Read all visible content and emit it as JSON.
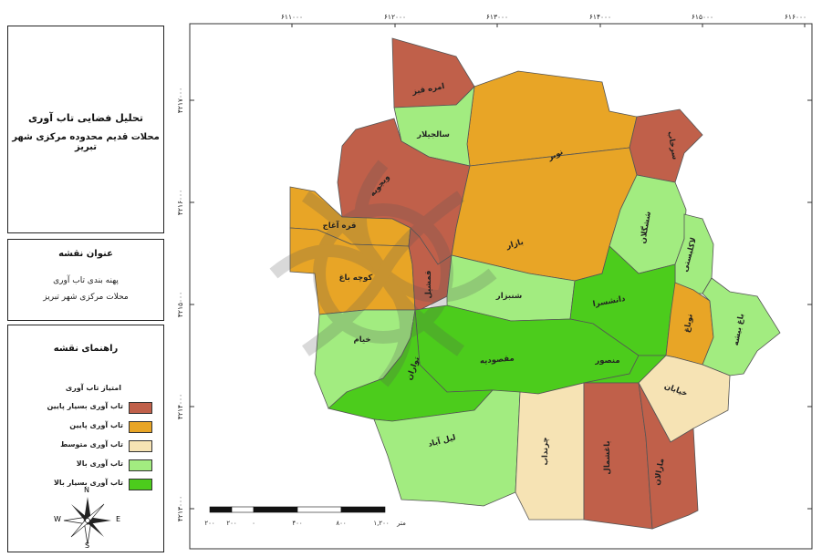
{
  "title": {
    "line1": "تحلیل فضایی تاب آوری",
    "line2": "محلات قدیم محدوده مرکزی شهر تبریز"
  },
  "subject": {
    "heading": "عنوان نقشه",
    "line1": "پهنه بندی تاب آوری",
    "line2": "محلات مرکزی شهر تبریز"
  },
  "legend": {
    "heading": "راهنمای نقشه",
    "subheading": "امتیاز تاب آوری",
    "items": [
      {
        "label": "تاب آوری بسیار پایین",
        "color": "#c0604a"
      },
      {
        "label": "تاب آوری پایین",
        "color": "#e8a526"
      },
      {
        "label": "تاب آوری متوسط",
        "color": "#f6e3b4"
      },
      {
        "label": "تاب آوری بالا",
        "color": "#a2ec80"
      },
      {
        "label": "تاب آوری بسیار بالا",
        "color": "#4ccc1c"
      }
    ]
  },
  "colors": {
    "very_low": "#c0604a",
    "low": "#e8a526",
    "medium": "#f6e3b4",
    "high": "#a2ec80",
    "very_high": "#4ccc1c"
  },
  "axes": {
    "x_labels": [
      "۶۱۱۰۰۰",
      "۶۱۲۰۰۰",
      "۶۱۳۰۰۰",
      "۶۱۴۰۰۰",
      "۶۱۵۰۰۰",
      "۶۱۶۰۰۰"
    ],
    "y_labels": [
      "۴۲۱۷۰۰۰",
      "۴۲۱۶۰۰۰",
      "۴۲۱۵۰۰۰",
      "۴۲۱۴۰۰۰",
      "۴۲۱۳۰۰۰"
    ]
  },
  "neighborhoods": [
    {
      "id": "amreh-qiz",
      "name": "امره قیز",
      "class": "very_low"
    },
    {
      "id": "nowbar",
      "name": "نوبر",
      "class": "low"
    },
    {
      "id": "sarnejab",
      "name": "سرخاب",
      "class": "very_low"
    },
    {
      "id": "alijelar",
      "name": "سالجیلار",
      "class": "high"
    },
    {
      "id": "vijuyeh",
      "name": "ویجویه",
      "class": "very_low"
    },
    {
      "id": "qareh-aghaj",
      "name": "قره آغاج",
      "class": "low"
    },
    {
      "id": "kucheh-bagh",
      "name": "کوچه باغ",
      "class": "low"
    },
    {
      "id": "bazar",
      "name": "بازار",
      "class": "low"
    },
    {
      "id": "shotorban",
      "name": "ششگلان",
      "class": "high"
    },
    {
      "id": "lakabi",
      "name": "لاکلبستی",
      "class": "high"
    },
    {
      "id": "tafalisal",
      "name": "قمشیل",
      "class": "very_low"
    },
    {
      "id": "shiraz",
      "name": "شنبزار",
      "class": "high"
    },
    {
      "id": "daneshsara",
      "name": "دانشسرا",
      "class": "very_high"
    },
    {
      "id": "nowbagh",
      "name": "نوباغ",
      "class": "low"
    },
    {
      "id": "bisheh-bagh",
      "name": "باغ بیشه",
      "class": "high"
    },
    {
      "id": "khiam",
      "name": "خیام",
      "class": "high"
    },
    {
      "id": "maghsoudieh",
      "name": "مقصودیه",
      "class": "very_high"
    },
    {
      "id": "amirkhiz",
      "name": "منصور",
      "class": "very_high"
    },
    {
      "id": "khayaban",
      "name": "خیابان",
      "class": "medium"
    },
    {
      "id": "tovarar",
      "name": "تواران",
      "class": "very_high"
    },
    {
      "id": "leylabad",
      "name": "لیل آباد",
      "class": "high"
    },
    {
      "id": "cheshmeh",
      "name": "چرنداب",
      "class": "medium"
    },
    {
      "id": "baghmisheh",
      "name": "باغشمال",
      "class": "very_low"
    },
    {
      "id": "maralan",
      "name": "مارالان",
      "class": "very_low"
    }
  ],
  "scalebar": {
    "labels": [
      "۲۰۰",
      "۲۰۰",
      "۰",
      "۴۰۰",
      "۸۰۰",
      "۱,۲۰۰"
    ],
    "unit": "متر"
  },
  "compass": {
    "n": "N",
    "s": "S",
    "e": "E",
    "w": "W"
  }
}
